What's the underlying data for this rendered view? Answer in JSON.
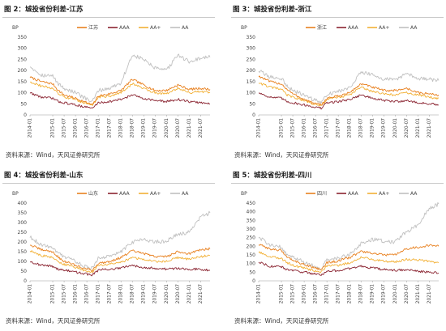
{
  "colors": {
    "江苏": "#e8801f",
    "浙江": "#e8801f",
    "山东": "#e8801f",
    "四川": "#e8801f",
    "AAA": "#8a2330",
    "AA+": "#f2b035",
    "AA": "#c0c0c0"
  },
  "panels": [
    {
      "title": "图 2：城投省份利差-江苏",
      "note": "资料来源：Wind，天风证券研究所",
      "chart_data": {
        "type": "line",
        "title": "图 2：城投省份利差-江苏",
        "ylabel": "BP",
        "ylim": [
          0,
          350
        ],
        "yticks": [
          0,
          50,
          100,
          150,
          200,
          250,
          300,
          350
        ],
        "xlim": [
          "2014-01",
          "2021-12"
        ],
        "xticks": [
          "2014-01",
          "2015-01",
          "2015-07",
          "2016-01",
          "2016-07",
          "2017-01",
          "2017-07",
          "2018-01",
          "2018-07",
          "2019-01",
          "2019-07",
          "2020-01",
          "2020-07",
          "2021-01",
          "2021-07"
        ],
        "legend_position": "top",
        "series": [
          {
            "name": "江苏",
            "x": [
              "2014-01",
              "2014-07",
              "2015-01",
              "2015-04",
              "2015-07",
              "2016-01",
              "2016-07",
              "2016-10",
              "2017-01",
              "2017-07",
              "2018-01",
              "2018-07",
              "2019-01",
              "2019-07",
              "2020-01",
              "2020-07",
              "2021-01",
              "2021-07",
              "2021-12"
            ],
            "values": [
              170,
              150,
              140,
              110,
              90,
              75,
              55,
              45,
              85,
              95,
              110,
              160,
              135,
              110,
              110,
              135,
              115,
              120,
              115
            ]
          },
          {
            "name": "AAA",
            "x": [
              "2014-01",
              "2014-07",
              "2015-01",
              "2015-04",
              "2015-07",
              "2016-01",
              "2016-07",
              "2016-10",
              "2017-01",
              "2017-07",
              "2018-01",
              "2018-07",
              "2019-01",
              "2019-07",
              "2020-01",
              "2020-07",
              "2021-01",
              "2021-07",
              "2021-12"
            ],
            "values": [
              100,
              80,
              75,
              60,
              55,
              45,
              35,
              30,
              55,
              60,
              70,
              90,
              75,
              65,
              60,
              70,
              60,
              55,
              50
            ]
          },
          {
            "name": "AA+",
            "x": [
              "2014-01",
              "2014-07",
              "2015-01",
              "2015-04",
              "2015-07",
              "2016-01",
              "2016-07",
              "2016-10",
              "2017-01",
              "2017-07",
              "2018-01",
              "2018-07",
              "2019-01",
              "2019-07",
              "2020-01",
              "2020-07",
              "2021-01",
              "2021-07",
              "2021-12"
            ],
            "values": [
              150,
              130,
              120,
              95,
              80,
              70,
              50,
              45,
              80,
              85,
              100,
              140,
              120,
              100,
              95,
              120,
              100,
              105,
              100
            ]
          },
          {
            "name": "AA",
            "x": [
              "2014-01",
              "2014-07",
              "2015-01",
              "2015-04",
              "2015-07",
              "2016-01",
              "2016-07",
              "2016-10",
              "2017-01",
              "2017-07",
              "2018-01",
              "2018-07",
              "2019-01",
              "2019-07",
              "2020-01",
              "2020-07",
              "2021-01",
              "2021-07",
              "2021-12"
            ],
            "values": [
              220,
              180,
              175,
              140,
              120,
              100,
              70,
              60,
              110,
              120,
              145,
              270,
              250,
              210,
              200,
              270,
              240,
              255,
              260
            ]
          }
        ]
      }
    },
    {
      "title": "图 3：城投省份利差-浙江",
      "note": "资料来源：Wind，天风证券研究所",
      "chart_data": {
        "type": "line",
        "title": "图 3：城投省份利差-浙江",
        "ylabel": "BP",
        "ylim": [
          0,
          350
        ],
        "yticks": [
          0,
          50,
          100,
          150,
          200,
          250,
          300,
          350
        ],
        "xlim": [
          "2014-01",
          "2021-12"
        ],
        "xticks": [
          "2014-01",
          "2015-01",
          "2015-07",
          "2016-01",
          "2016-07",
          "2017-01",
          "2017-07",
          "2018-01",
          "2018-07",
          "2019-01",
          "2019-07",
          "2020-01",
          "2020-07",
          "2021-01",
          "2021-07"
        ],
        "legend_position": "top",
        "series": [
          {
            "name": "浙江",
            "x": [
              "2014-01",
              "2014-07",
              "2015-01",
              "2015-04",
              "2015-07",
              "2016-01",
              "2016-07",
              "2016-10",
              "2017-01",
              "2017-07",
              "2018-01",
              "2018-07",
              "2019-01",
              "2019-07",
              "2020-01",
              "2020-07",
              "2021-01",
              "2021-07",
              "2021-12"
            ],
            "values": [
              175,
              150,
              140,
              115,
              95,
              70,
              50,
              45,
              75,
              85,
              100,
              140,
              125,
              110,
              110,
              120,
              100,
              95,
              90
            ]
          },
          {
            "name": "AAA",
            "x": [
              "2014-01",
              "2014-07",
              "2015-01",
              "2015-04",
              "2015-07",
              "2016-01",
              "2016-07",
              "2016-10",
              "2017-01",
              "2017-07",
              "2018-01",
              "2018-07",
              "2019-01",
              "2019-07",
              "2020-01",
              "2020-07",
              "2021-01",
              "2021-07",
              "2021-12"
            ],
            "values": [
              100,
              80,
              75,
              60,
              55,
              45,
              35,
              30,
              55,
              60,
              70,
              90,
              75,
              65,
              60,
              65,
              55,
              50,
              45
            ]
          },
          {
            "name": "AA+",
            "x": [
              "2014-01",
              "2014-07",
              "2015-01",
              "2015-04",
              "2015-07",
              "2016-01",
              "2016-07",
              "2016-10",
              "2017-01",
              "2017-07",
              "2018-01",
              "2018-07",
              "2019-01",
              "2019-07",
              "2020-01",
              "2020-07",
              "2021-01",
              "2021-07",
              "2021-12"
            ],
            "values": [
              145,
              125,
              115,
              90,
              80,
              65,
              45,
              40,
              70,
              80,
              90,
              125,
              105,
              95,
              90,
              100,
              90,
              80,
              75
            ]
          },
          {
            "name": "AA",
            "x": [
              "2014-01",
              "2014-07",
              "2015-01",
              "2015-04",
              "2015-07",
              "2016-01",
              "2016-07",
              "2016-10",
              "2017-01",
              "2017-07",
              "2018-01",
              "2018-07",
              "2019-01",
              "2019-07",
              "2020-01",
              "2020-07",
              "2021-01",
              "2021-07",
              "2021-12"
            ],
            "values": [
              200,
              170,
              165,
              130,
              110,
              90,
              65,
              55,
              95,
              105,
              125,
              195,
              180,
              160,
              160,
              185,
              165,
              160,
              155
            ]
          }
        ]
      }
    },
    {
      "title": "图 4：城投省份利差-山东",
      "note": "资料来源：Wind，天风证券研究所",
      "chart_data": {
        "type": "line",
        "title": "图 4：城投省份利差-山东",
        "ylabel": "BP",
        "ylim": [
          0,
          400
        ],
        "yticks": [
          0,
          50,
          100,
          150,
          200,
          250,
          300,
          350,
          400
        ],
        "xlim": [
          "2014-01",
          "2021-12"
        ],
        "xticks": [
          "2014-01",
          "2015-01",
          "2015-07",
          "2016-01",
          "2016-07",
          "2017-01",
          "2017-07",
          "2018-01",
          "2018-07",
          "2019-01",
          "2019-07",
          "2020-01",
          "2020-07",
          "2021-01",
          "2021-07"
        ],
        "legend_position": "top",
        "series": [
          {
            "name": "山东",
            "x": [
              "2014-01",
              "2014-07",
              "2015-01",
              "2015-04",
              "2015-07",
              "2016-01",
              "2016-07",
              "2016-10",
              "2017-01",
              "2017-07",
              "2018-01",
              "2018-07",
              "2019-01",
              "2019-07",
              "2020-01",
              "2020-07",
              "2021-01",
              "2021-07",
              "2021-12"
            ],
            "values": [
              185,
              160,
              150,
              120,
              100,
              80,
              60,
              55,
              90,
              100,
              120,
              155,
              140,
              125,
              125,
              150,
              140,
              160,
              165
            ]
          },
          {
            "name": "AAA",
            "x": [
              "2014-01",
              "2014-07",
              "2015-01",
              "2015-04",
              "2015-07",
              "2016-01",
              "2016-07",
              "2016-10",
              "2017-01",
              "2017-07",
              "2018-01",
              "2018-07",
              "2019-01",
              "2019-07",
              "2020-01",
              "2020-07",
              "2021-01",
              "2021-07",
              "2021-12"
            ],
            "values": [
              100,
              80,
              75,
              60,
              55,
              45,
              35,
              30,
              55,
              60,
              65,
              80,
              70,
              65,
              60,
              65,
              60,
              60,
              55
            ]
          },
          {
            "name": "AA+",
            "x": [
              "2014-01",
              "2014-07",
              "2015-01",
              "2015-04",
              "2015-07",
              "2016-01",
              "2016-07",
              "2016-10",
              "2017-01",
              "2017-07",
              "2018-01",
              "2018-07",
              "2019-01",
              "2019-07",
              "2020-01",
              "2020-07",
              "2021-01",
              "2021-07",
              "2021-12"
            ],
            "values": [
              155,
              130,
              120,
              95,
              85,
              70,
              50,
              45,
              80,
              85,
              95,
              120,
              110,
              100,
              100,
              120,
              110,
              125,
              130
            ]
          },
          {
            "name": "AA",
            "x": [
              "2014-01",
              "2014-07",
              "2015-01",
              "2015-04",
              "2015-07",
              "2016-01",
              "2016-07",
              "2016-10",
              "2017-01",
              "2017-07",
              "2018-01",
              "2018-07",
              "2019-01",
              "2019-07",
              "2020-01",
              "2020-07",
              "2021-01",
              "2021-07",
              "2021-12"
            ],
            "values": [
              225,
              185,
              175,
              140,
              125,
              100,
              70,
              65,
              115,
              125,
              150,
              200,
              215,
              200,
              205,
              240,
              250,
              330,
              350
            ]
          }
        ]
      }
    },
    {
      "title": "图 5：城投省份利差-四川",
      "note": "资料来源：Wind，天风证券研究所",
      "chart_data": {
        "type": "line",
        "title": "图 5：城投省份利差-四川",
        "ylabel": "BP",
        "ylim": [
          0,
          450
        ],
        "yticks": [
          0,
          50,
          100,
          150,
          200,
          250,
          300,
          350,
          400,
          450
        ],
        "xlim": [
          "2014-01",
          "2021-12"
        ],
        "xticks": [
          "2014-01",
          "2015-01",
          "2015-07",
          "2016-01",
          "2016-07",
          "2017-01",
          "2017-07",
          "2018-01",
          "2018-07",
          "2019-01",
          "2019-07",
          "2020-01",
          "2020-07",
          "2021-01",
          "2021-07"
        ],
        "legend_position": "top",
        "series": [
          {
            "name": "四川",
            "x": [
              "2014-01",
              "2014-07",
              "2015-01",
              "2015-04",
              "2015-07",
              "2016-01",
              "2016-07",
              "2016-10",
              "2017-01",
              "2017-07",
              "2018-01",
              "2018-07",
              "2019-01",
              "2019-07",
              "2020-01",
              "2020-07",
              "2021-01",
              "2021-07",
              "2021-12"
            ],
            "values": [
              210,
              185,
              175,
              140,
              120,
              95,
              75,
              65,
              105,
              115,
              135,
              170,
              160,
              150,
              150,
              185,
              195,
              205,
              200
            ]
          },
          {
            "name": "AAA",
            "x": [
              "2014-01",
              "2014-07",
              "2015-01",
              "2015-04",
              "2015-07",
              "2016-01",
              "2016-07",
              "2016-10",
              "2017-01",
              "2017-07",
              "2018-01",
              "2018-07",
              "2019-01",
              "2019-07",
              "2020-01",
              "2020-07",
              "2021-01",
              "2021-07",
              "2021-12"
            ],
            "values": [
              110,
              85,
              80,
              65,
              60,
              50,
              40,
              35,
              55,
              60,
              70,
              85,
              75,
              65,
              60,
              65,
              55,
              50,
              45
            ]
          },
          {
            "name": "AA+",
            "x": [
              "2014-01",
              "2014-07",
              "2015-01",
              "2015-04",
              "2015-07",
              "2016-01",
              "2016-07",
              "2016-10",
              "2017-01",
              "2017-07",
              "2018-01",
              "2018-07",
              "2019-01",
              "2019-07",
              "2020-01",
              "2020-07",
              "2021-01",
              "2021-07",
              "2021-12"
            ],
            "values": [
              165,
              140,
              130,
              105,
              90,
              75,
              55,
              50,
              85,
              90,
              105,
              135,
              125,
              115,
              110,
              125,
              120,
              115,
              105
            ]
          },
          {
            "name": "AA",
            "x": [
              "2014-01",
              "2014-07",
              "2015-01",
              "2015-04",
              "2015-07",
              "2016-01",
              "2016-07",
              "2016-10",
              "2017-01",
              "2017-07",
              "2018-01",
              "2018-07",
              "2019-01",
              "2019-07",
              "2020-01",
              "2020-07",
              "2021-01",
              "2021-07",
              "2021-12"
            ],
            "values": [
              250,
              210,
              195,
              155,
              135,
              110,
              80,
              70,
              120,
              130,
              155,
              215,
              240,
              230,
              225,
              285,
              320,
              420,
              445
            ]
          }
        ]
      }
    }
  ]
}
